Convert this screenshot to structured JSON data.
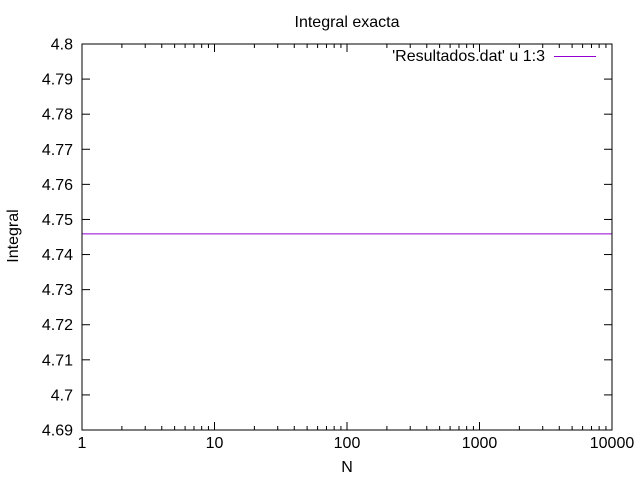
{
  "chart_data": {
    "type": "line",
    "title": "Integral exacta",
    "xlabel": "N",
    "ylabel": "Integral",
    "xscale": "log",
    "xlim": [
      1,
      10000
    ],
    "ylim": [
      4.69,
      4.8
    ],
    "x_ticks": [
      "1",
      "10",
      "100",
      "1000",
      "10000"
    ],
    "y_ticks": [
      "4.69",
      "4.7",
      "4.71",
      "4.72",
      "4.73",
      "4.74",
      "4.75",
      "4.76",
      "4.77",
      "4.78",
      "4.79",
      "4.8"
    ],
    "grid": false,
    "legend_position": "top-right",
    "series": [
      {
        "name": "'Resultados.dat' u 1:3",
        "color": "#9400d3",
        "x": [
          1,
          10000
        ],
        "y": [
          4.7459,
          4.7459
        ]
      }
    ]
  }
}
